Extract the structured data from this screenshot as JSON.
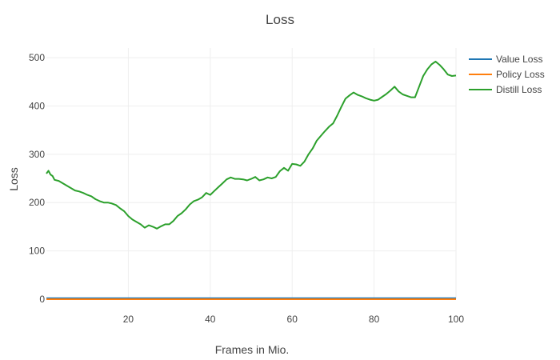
{
  "chart_data": {
    "type": "line",
    "title": "Loss",
    "xlabel": "Frames in Mio.",
    "ylabel": "Loss",
    "xlim": [
      0,
      100
    ],
    "ylim": [
      0,
      520
    ],
    "xticks": [
      20,
      40,
      60,
      80,
      100
    ],
    "yticks": [
      0,
      100,
      200,
      300,
      400,
      500
    ],
    "grid": true,
    "legend_position": "top-right",
    "series": [
      {
        "name": "Value Loss",
        "color": "#1f77b4",
        "x": [
          0,
          100
        ],
        "y": [
          2,
          2
        ]
      },
      {
        "name": "Policy Loss",
        "color": "#ff7f0e",
        "x": [
          0,
          100
        ],
        "y": [
          0,
          0
        ]
      },
      {
        "name": "Distill Loss",
        "color": "#2ca02c",
        "x": [
          0,
          0.5,
          1,
          1.5,
          2,
          3,
          4,
          5,
          6,
          7,
          8,
          9,
          10,
          11,
          12,
          13,
          14,
          15,
          16,
          17,
          18,
          19,
          20,
          21,
          22,
          23,
          24,
          25,
          26,
          27,
          28,
          29,
          30,
          31,
          32,
          33,
          34,
          35,
          36,
          37,
          38,
          39,
          40,
          41,
          42,
          43,
          44,
          45,
          46,
          47,
          48,
          49,
          50,
          51,
          52,
          53,
          54,
          55,
          56,
          57,
          58,
          59,
          60,
          61,
          62,
          63,
          64,
          65,
          66,
          67,
          68,
          69,
          70,
          71,
          72,
          73,
          74,
          75,
          76,
          77,
          78,
          79,
          80,
          81,
          82,
          83,
          84,
          85,
          86,
          87,
          88,
          89,
          90,
          91,
          92,
          93,
          94,
          95,
          96,
          97,
          98,
          99,
          100
        ],
        "y": [
          260,
          266,
          258,
          255,
          247,
          245,
          240,
          235,
          230,
          225,
          223,
          220,
          216,
          213,
          207,
          203,
          200,
          200,
          198,
          195,
          188,
          182,
          172,
          165,
          160,
          155,
          148,
          153,
          150,
          146,
          151,
          155,
          155,
          162,
          172,
          178,
          186,
          196,
          203,
          206,
          211,
          220,
          216,
          224,
          232,
          240,
          248,
          252,
          249,
          249,
          248,
          246,
          249,
          253,
          246,
          248,
          252,
          250,
          253,
          265,
          272,
          266,
          280,
          279,
          276,
          285,
          300,
          312,
          328,
          338,
          348,
          357,
          364,
          380,
          398,
          415,
          422,
          428,
          423,
          420,
          416,
          413,
          411,
          413,
          419,
          425,
          432,
          440,
          430,
          424,
          421,
          418,
          418,
          440,
          462,
          476,
          486,
          492,
          485,
          476,
          465,
          462,
          463
        ]
      }
    ]
  }
}
